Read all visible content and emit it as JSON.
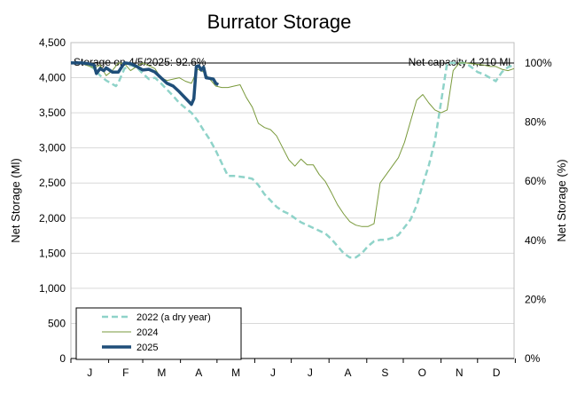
{
  "chart_data": {
    "type": "line",
    "title": "Burrator Storage",
    "ylabel": "Net Storage (Ml)",
    "y2label": "Net Storage (%)",
    "ylim": [
      0,
      4500
    ],
    "y2lim": [
      0,
      1.0
    ],
    "yticks": [
      "0",
      "500",
      "1,000",
      "1,500",
      "2,000",
      "2,500",
      "3,000",
      "3,500",
      "4,000",
      "4,500"
    ],
    "y2ticks": [
      "0%",
      "20%",
      "40%",
      "60%",
      "80%",
      "100%"
    ],
    "months": [
      "J",
      "F",
      "M",
      "A",
      "M",
      "J",
      "J",
      "A",
      "S",
      "O",
      "N",
      "D"
    ],
    "grid": true,
    "legend_position": "bottom-left",
    "annotation_left": "Storage on 4/5/2025: 92.6%",
    "annotation_right": "Net capacity 4,210 Ml",
    "capacity": 4210,
    "series": [
      {
        "name": "2022 (a dry year)",
        "color": "#8fd3c9",
        "style": "dashed",
        "x": [
          1,
          5,
          10,
          15,
          20,
          25,
          30,
          35,
          38,
          40,
          45,
          50,
          55,
          60,
          65,
          70,
          75,
          80,
          85,
          90,
          95,
          100,
          105,
          110,
          115,
          120,
          125,
          130,
          135,
          140,
          145,
          150,
          155,
          160,
          165,
          170,
          175,
          180,
          185,
          190,
          195,
          200,
          205,
          210,
          215,
          220,
          225,
          230,
          235,
          240,
          245,
          250,
          255,
          260,
          265,
          270,
          275,
          280,
          285,
          290,
          295,
          300,
          305,
          310,
          315,
          320,
          325,
          330,
          335,
          340,
          345,
          350,
          355,
          360,
          365
        ],
        "y": [
          4210,
          4210,
          4210,
          4190,
          4130,
          4030,
          3960,
          3910,
          3880,
          3930,
          4130,
          4180,
          4150,
          4060,
          3980,
          4000,
          3920,
          3830,
          3740,
          3640,
          3570,
          3500,
          3390,
          3250,
          3120,
          2960,
          2780,
          2600,
          2600,
          2590,
          2580,
          2560,
          2470,
          2340,
          2250,
          2160,
          2100,
          2060,
          2000,
          1940,
          1900,
          1860,
          1820,
          1780,
          1700,
          1600,
          1500,
          1440,
          1440,
          1500,
          1600,
          1670,
          1690,
          1690,
          1720,
          1760,
          1870,
          1980,
          2180,
          2480,
          2750,
          3100,
          3650,
          4210,
          4210,
          4210,
          4210,
          4150,
          4080,
          4050,
          4000,
          3950,
          4080,
          4150,
          4180
        ]
      },
      {
        "name": "2024",
        "color": "#7a9a3c",
        "style": "solid",
        "x": [
          1,
          10,
          20,
          25,
          30,
          35,
          40,
          45,
          50,
          55,
          60,
          65,
          70,
          75,
          80,
          85,
          90,
          95,
          100,
          105,
          110,
          115,
          120,
          125,
          130,
          135,
          140,
          145,
          150,
          155,
          160,
          165,
          170,
          175,
          180,
          185,
          190,
          195,
          200,
          205,
          210,
          215,
          220,
          225,
          230,
          235,
          240,
          245,
          250,
          255,
          260,
          265,
          270,
          275,
          280,
          285,
          290,
          295,
          300,
          305,
          310,
          315,
          320,
          325,
          330,
          335,
          340,
          345,
          350,
          355,
          360,
          365
        ],
        "y": [
          4210,
          4200,
          4140,
          4180,
          4030,
          4100,
          4210,
          4200,
          4100,
          4160,
          4210,
          4170,
          4130,
          4000,
          3960,
          3980,
          4000,
          3950,
          3920,
          4120,
          4080,
          3980,
          3880,
          3860,
          3860,
          3880,
          3900,
          3720,
          3580,
          3350,
          3290,
          3260,
          3170,
          3000,
          2830,
          2740,
          2840,
          2760,
          2760,
          2620,
          2520,
          2360,
          2190,
          2060,
          1950,
          1900,
          1880,
          1880,
          1920,
          2500,
          2620,
          2740,
          2860,
          3080,
          3380,
          3680,
          3760,
          3640,
          3540,
          3500,
          3540,
          4100,
          4210,
          4210,
          4200,
          4190,
          4180,
          4160,
          4160,
          4120,
          4100,
          4130
        ]
      },
      {
        "name": "2025",
        "color": "#1f4e79",
        "style": "solid-thick",
        "x": [
          1,
          5,
          10,
          15,
          20,
          22,
          25,
          28,
          30,
          35,
          40,
          45,
          50,
          55,
          60,
          65,
          70,
          75,
          80,
          85,
          90,
          95,
          100,
          102,
          104,
          106,
          108,
          110,
          112,
          115,
          118,
          120,
          122
        ],
        "y": [
          4210,
          4210,
          4210,
          4200,
          4180,
          4060,
          4130,
          4100,
          4140,
          4080,
          4080,
          4210,
          4200,
          4160,
          4110,
          4120,
          4080,
          4000,
          3920,
          3880,
          3800,
          3710,
          3620,
          3700,
          4160,
          4170,
          4110,
          4150,
          4000,
          3990,
          3980,
          3920,
          3900
        ]
      }
    ]
  }
}
